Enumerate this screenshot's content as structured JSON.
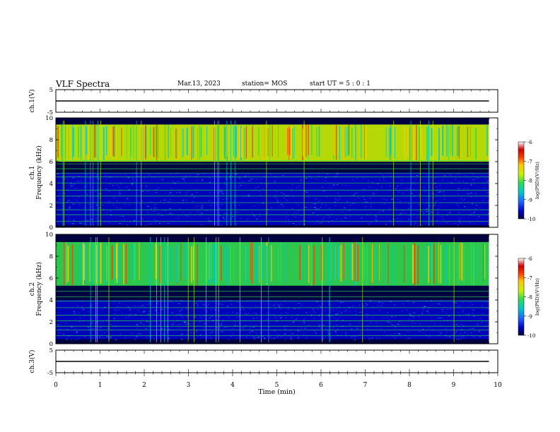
{
  "header": {
    "title": "VLF Spectra",
    "date": "Mar.13, 2023",
    "station": "station= MOS",
    "start": "start  UT  =   5  : 0   : 1"
  },
  "colorbar": {
    "label": "log(PSD)(V²/Hz)",
    "ticks": [
      "-6",
      "-7",
      "-8",
      "-9",
      "-10"
    ],
    "colors": [
      "#000040",
      "#0000c8",
      "#1e64ff",
      "#00c8c8",
      "#32dc50",
      "#c8f000",
      "#ffc800",
      "#ff3c00",
      "#d20000",
      "#ffffff"
    ]
  },
  "chart_data": [
    {
      "type": "line",
      "panel": "ch1-voltage",
      "ylabel": "ch.1(V)",
      "ylim": [
        -5,
        5
      ],
      "yticks": [
        "5",
        "-5"
      ],
      "x": [
        0,
        9.8
      ],
      "y": [
        0,
        0
      ],
      "x_range": [
        0,
        10
      ]
    },
    {
      "type": "heatmap",
      "panel": "ch1-spectrogram",
      "ylabel": "ch.1\nFrequency (kHz)",
      "ylim": [
        0,
        10
      ],
      "yticks": [
        "10",
        "8",
        "6",
        "4",
        "2",
        "0"
      ],
      "x_range": [
        0,
        10
      ],
      "z_range": [
        -10,
        -6
      ],
      "z_label": "log(PSD)(V²/Hz)",
      "bands": [
        {
          "f_low": 6.0,
          "f_high": 9.4,
          "level": -7.5
        },
        {
          "f_low": 9.4,
          "f_high": 10.0,
          "level": -10
        },
        {
          "f_low": 5.0,
          "f_high": 6.0,
          "level": -10
        },
        {
          "f_low": 0.2,
          "f_high": 5.0,
          "level": -9.4
        },
        {
          "f_low": 0.0,
          "f_high": 0.2,
          "level": -10
        }
      ],
      "tones_khz": [
        0.55,
        1.15,
        1.6,
        2.25,
        2.85,
        3.4,
        4.05,
        4.6,
        4.95,
        5.35,
        5.8,
        6.1
      ],
      "data_end_min": 9.8
    },
    {
      "type": "heatmap",
      "panel": "ch2-spectrogram",
      "ylabel": "ch.2\nFrequency (kHz)",
      "ylim": [
        0,
        10
      ],
      "yticks": [
        "10",
        "8",
        "6",
        "4",
        "2",
        "0"
      ],
      "x_range": [
        0,
        10
      ],
      "z_range": [
        -10,
        -6
      ],
      "z_label": "log(PSD)(V²/Hz)",
      "bands": [
        {
          "f_low": 5.3,
          "f_high": 9.3,
          "level": -8.0
        },
        {
          "f_low": 9.3,
          "f_high": 10.0,
          "level": -10
        },
        {
          "f_low": 4.0,
          "f_high": 5.3,
          "level": -10
        },
        {
          "f_low": 0.4,
          "f_high": 4.0,
          "level": -9.5
        },
        {
          "f_low": 0.0,
          "f_high": 0.4,
          "level": -10
        }
      ],
      "tones_khz": [
        0.75,
        1.25,
        1.6,
        2.1,
        2.6,
        3.3,
        3.9,
        4.3,
        4.8
      ],
      "data_end_min": 9.8
    },
    {
      "type": "line",
      "panel": "ch3-voltage",
      "ylabel": "ch.3(V)",
      "ylim": [
        -5,
        5
      ],
      "yticks": [
        "5",
        "-5"
      ],
      "x": [
        0,
        9.8
      ],
      "y": [
        0,
        0
      ],
      "x_range": [
        0,
        10
      ],
      "xlabel": "Time  (min)",
      "xticks": [
        "0",
        "1",
        "2",
        "3",
        "4",
        "5",
        "6",
        "7",
        "8",
        "9",
        "10"
      ]
    }
  ]
}
